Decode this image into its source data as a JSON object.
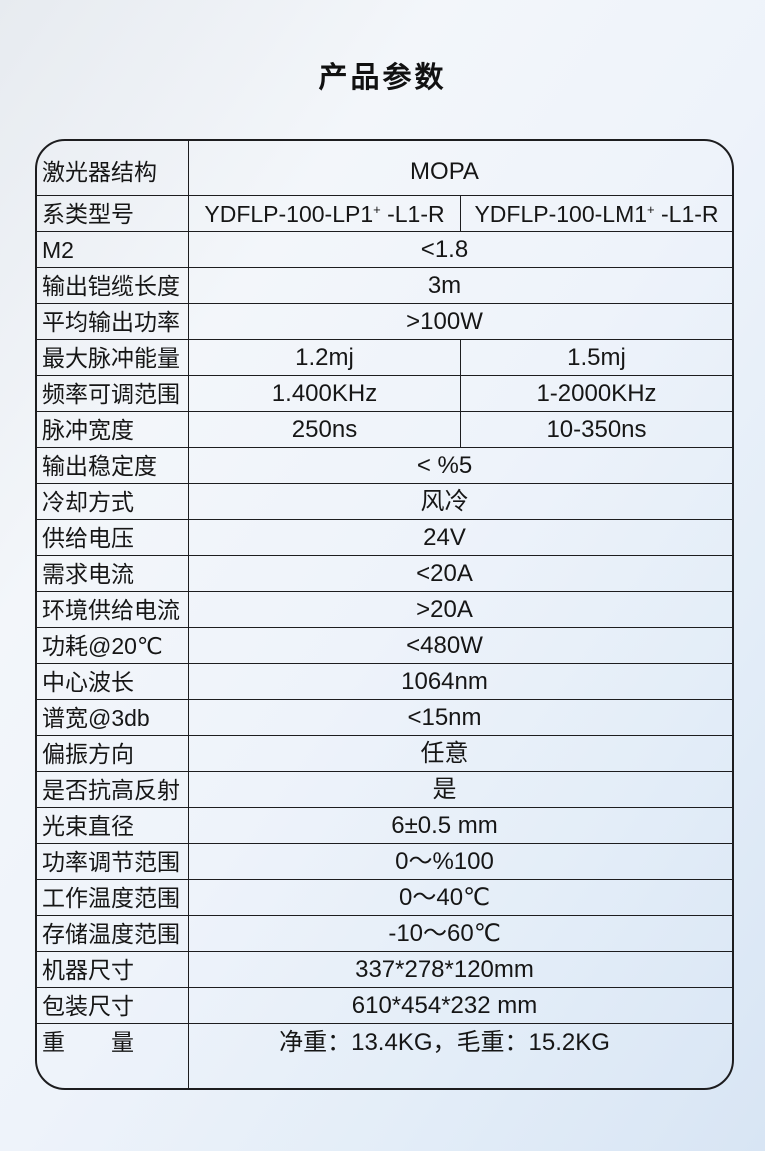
{
  "page": {
    "title": "产品参数",
    "background_top_color": "#eef2f7",
    "background_bottom_color": "#d8e5f4",
    "border_color": "#1d1d1f",
    "text_color": "#161616"
  },
  "table": {
    "rows": [
      {
        "label": "激光器结构",
        "value": "MOPA"
      },
      {
        "label": "系类型号",
        "v1": {
          "pre": "YDFLP-100-LP1",
          "sup": "+",
          "post": " -L1-R"
        },
        "v2": {
          "pre": "YDFLP-100-LM1",
          "sup": "+",
          "post": " -L1-R"
        }
      },
      {
        "label": "M2",
        "value": "<1.8"
      },
      {
        "label": "输出铠缆长度",
        "value": "3m"
      },
      {
        "label": "平均输出功率",
        "value": ">100W"
      },
      {
        "label": "最大脉冲能量",
        "v1": "1.2mj",
        "v2": "1.5mj"
      },
      {
        "label": "频率可调范围",
        "v1": "1.400KHz",
        "v2": "1-2000KHz"
      },
      {
        "label": "脉冲宽度",
        "v1": "250ns",
        "v2": "10-350ns"
      },
      {
        "label": "输出稳定度",
        "value": "< %5"
      },
      {
        "label": "冷却方式",
        "value": "风冷"
      },
      {
        "label": "供给电压",
        "value": "24V"
      },
      {
        "label": "需求电流",
        "value": "<20A"
      },
      {
        "label": "环境供给电流",
        "value": ">20A"
      },
      {
        "label": "功耗@20℃",
        "value": "<480W"
      },
      {
        "label": "中心波长",
        "value": "1064nm"
      },
      {
        "label": "谱宽@3db",
        "value": "<15nm"
      },
      {
        "label": "偏振方向",
        "value": "任意"
      },
      {
        "label": "是否抗高反射",
        "value": "是"
      },
      {
        "label": "光束直径",
        "value": "6±0.5 mm"
      },
      {
        "label": "功率调节范围",
        "value": "0～%100"
      },
      {
        "label": "工作温度范围",
        "value": "0～40℃"
      },
      {
        "label": "存储温度范围",
        "value": "-10～60℃"
      },
      {
        "label": "机器尺寸",
        "value": "337*278*120mm"
      },
      {
        "label": "包装尺寸",
        "value": "610*454*232 mm"
      },
      {
        "label": "重　　量",
        "value": "净重：13.4KG，毛重：15.2KG"
      }
    ]
  }
}
